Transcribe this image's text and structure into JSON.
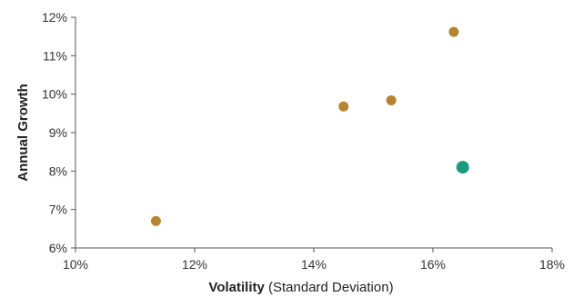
{
  "chart_data": {
    "type": "scatter",
    "title": "",
    "xlabel_bold": "Volatility",
    "xlabel_rest": " (Standard Deviation)",
    "ylabel": "Annual Growth",
    "xlim": [
      10,
      18
    ],
    "ylim": [
      6,
      12
    ],
    "x_ticks": [
      10,
      12,
      14,
      16,
      18
    ],
    "y_ticks": [
      6,
      7,
      8,
      9,
      10,
      11,
      12
    ],
    "x_tick_labels": [
      "10%",
      "12%",
      "14%",
      "16%",
      "18%"
    ],
    "y_tick_labels": [
      "6%",
      "7%",
      "8%",
      "9%",
      "10%",
      "11%",
      "12%"
    ],
    "grid": false,
    "colors": {
      "primary": "#b5862f",
      "highlight": "#1a9b7f"
    },
    "points": [
      {
        "x": 11.35,
        "y": 6.7,
        "highlight": false
      },
      {
        "x": 14.5,
        "y": 9.68,
        "highlight": false
      },
      {
        "x": 15.3,
        "y": 9.84,
        "highlight": false
      },
      {
        "x": 16.35,
        "y": 11.62,
        "highlight": false
      },
      {
        "x": 16.5,
        "y": 8.1,
        "highlight": true
      }
    ]
  }
}
